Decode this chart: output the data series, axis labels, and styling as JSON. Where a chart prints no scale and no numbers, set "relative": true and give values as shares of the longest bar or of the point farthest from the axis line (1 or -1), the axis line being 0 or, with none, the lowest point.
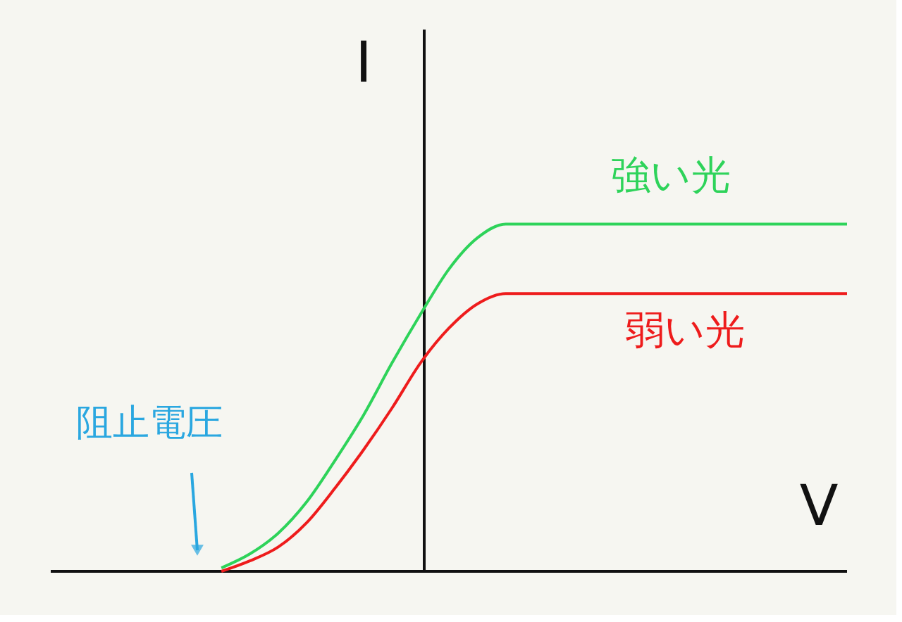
{
  "chart_data": {
    "type": "line",
    "relative": true,
    "xlabel": "V",
    "ylabel": "I",
    "categories": [
      null,
      null,
      null,
      null,
      null,
      null,
      null,
      null,
      null,
      null,
      null,
      null,
      null,
      null,
      null,
      null,
      null,
      null,
      null,
      null,
      null,
      null,
      null,
      null,
      null,
      null,
      null,
      null,
      null
    ],
    "series": [
      {
        "name": "強い光",
        "color": "#2ed35a",
        "values": [
          null,
          null,
          null,
          null,
          null,
          null,
          0.01,
          0.05,
          0.11,
          0.2,
          0.32,
          0.45,
          0.6,
          0.74,
          0.87,
          0.96,
          1,
          1,
          1,
          1,
          1,
          1,
          1,
          1,
          1,
          1,
          1,
          1,
          1
        ]
      },
      {
        "name": "弱い光",
        "color": "#ee1c1c",
        "values": [
          null,
          null,
          null,
          null,
          null,
          null,
          0.0,
          0.03,
          0.07,
          0.14,
          0.24,
          0.35,
          0.47,
          0.6,
          0.7,
          0.77,
          0.8,
          0.8,
          0.8,
          0.8,
          0.8,
          0.8,
          0.8,
          0.8,
          0.8,
          0.8,
          0.8,
          0.8,
          0.8
        ]
      }
    ],
    "annotations": [
      "阻止電圧"
    ]
  }
}
